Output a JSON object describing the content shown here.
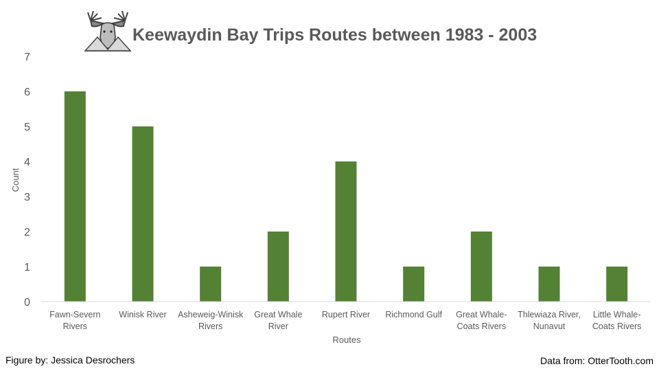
{
  "chart_data": {
    "type": "bar",
    "title": "Keewaydin Bay Trips Routes between 1983 - 2003",
    "xlabel": "Routes",
    "ylabel": "Count",
    "ylim": [
      0,
      7
    ],
    "yticks": [
      0,
      1,
      2,
      3,
      4,
      5,
      6,
      7
    ],
    "grid": false,
    "legend": "none",
    "categories": [
      [
        "Fawn-Severn",
        "Rivers"
      ],
      [
        "Winisk River"
      ],
      [
        "Asheweig-Winisk",
        "Rivers"
      ],
      [
        "Great Whale",
        "River"
      ],
      [
        "Rupert River"
      ],
      [
        "Richmond Gulf"
      ],
      [
        "Great Whale-",
        "Coats Rivers"
      ],
      [
        "Thlewiaza River,",
        "Nunavut"
      ],
      [
        "Little Whale-",
        "Coats Rivers"
      ]
    ],
    "values": [
      6,
      5,
      1,
      2,
      4,
      1,
      2,
      1,
      1
    ],
    "bar_color": "#548235"
  },
  "logo": {
    "icon": "moose-logo-icon"
  },
  "footer": {
    "credit": "Figure by: Jessica Desrochers",
    "source": "Data from: OtterTooth.com"
  }
}
